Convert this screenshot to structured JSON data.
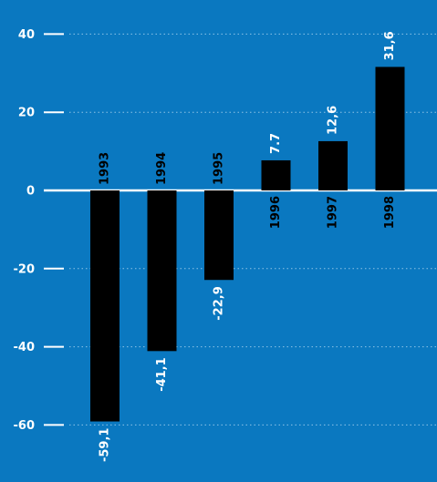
{
  "chart_data": {
    "type": "bar",
    "title": "",
    "xlabel": "",
    "ylabel": "",
    "categories": [
      "1993",
      "1994",
      "1995",
      "1996",
      "1997",
      "1998"
    ],
    "values": [
      -59.1,
      -41.1,
      -22.9,
      7.7,
      12.6,
      31.6
    ],
    "value_labels": [
      "-59,1",
      "-41,1",
      "-22,9",
      "7.7",
      "12,6",
      "31,6"
    ],
    "ylim": [
      -60,
      40
    ],
    "yticks": [
      40,
      20,
      0,
      -20,
      -40,
      -60
    ],
    "ytick_labels": [
      "40",
      "20",
      "0",
      "-20",
      "-40",
      "-60"
    ],
    "grid": true,
    "legend": "none",
    "colors": {
      "background": "#0a78c0",
      "bar": "#000000",
      "axis": "#ffffff",
      "grid": "#8fc3e6",
      "tick_text": "#ffffff",
      "category_text": "#000000"
    }
  }
}
